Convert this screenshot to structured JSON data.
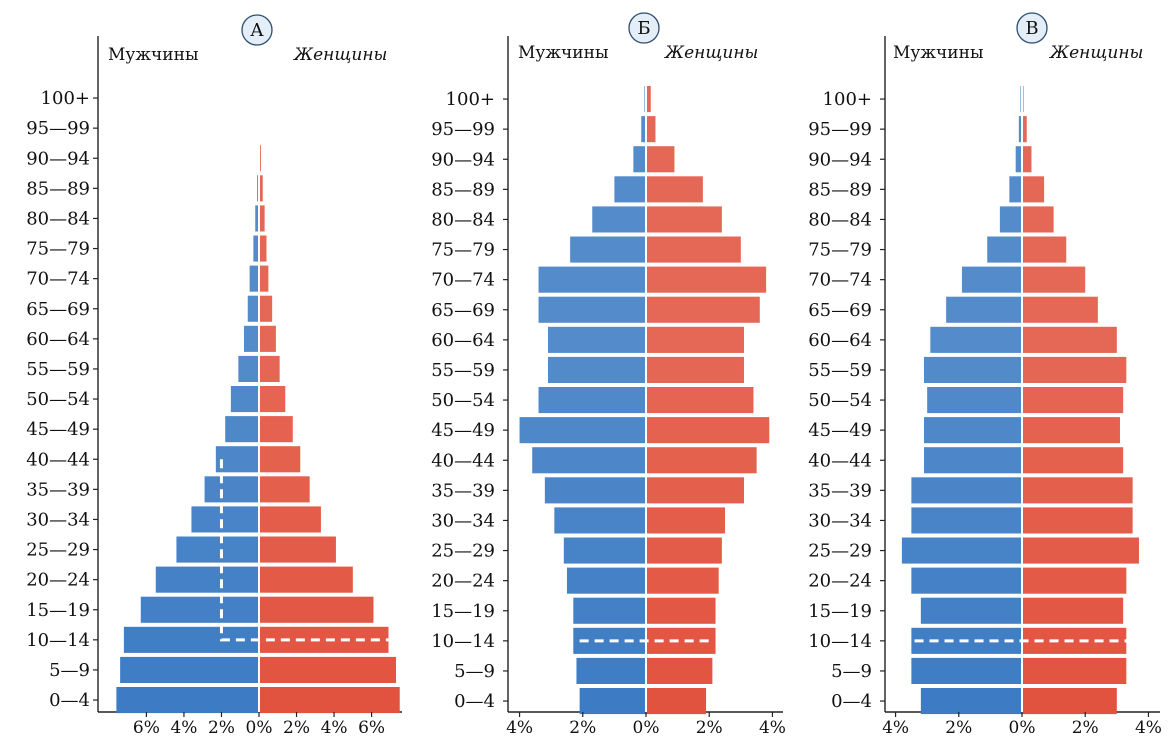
{
  "chart_data": [
    {
      "type": "bar",
      "panel_letter": "А",
      "left_label": "Мужчины",
      "right_label": "Женщины",
      "categories": [
        "0—4",
        "5—9",
        "10—14",
        "15—19",
        "20—24",
        "25—29",
        "30—34",
        "35—39",
        "40—44",
        "45—49",
        "50—54",
        "55—59",
        "60—64",
        "65—69",
        "70—74",
        "75—79",
        "80—84",
        "85—89",
        "90—94",
        "95—99",
        "100+"
      ],
      "series": [
        {
          "name": "Мужчины",
          "values": [
            7.6,
            7.4,
            7.2,
            6.3,
            5.5,
            4.4,
            3.6,
            2.9,
            2.3,
            1.8,
            1.5,
            1.1,
            0.8,
            0.6,
            0.5,
            0.3,
            0.2,
            0.1,
            0.05,
            0.0,
            0.0
          ]
        },
        {
          "name": "Женщины",
          "values": [
            7.5,
            7.3,
            6.9,
            6.1,
            5.0,
            4.1,
            3.3,
            2.7,
            2.2,
            1.8,
            1.4,
            1.1,
            0.9,
            0.7,
            0.5,
            0.4,
            0.3,
            0.2,
            0.1,
            0.05,
            0.0
          ]
        }
      ],
      "x_ticks": [
        "6%",
        "4%",
        "2%",
        "0%",
        "2%",
        "4%",
        "6%"
      ],
      "x_tick_values": [
        -6,
        -4,
        -2,
        0,
        2,
        4,
        6
      ],
      "xlim": [
        -8.1,
        8.1
      ],
      "colors": {
        "male": "#3d7cc4",
        "female": "#e2533f"
      },
      "dashed_outline": {
        "half_width": 2.0,
        "from_age_index": 2,
        "to_age_index": 8,
        "horizontal_to": 7.0
      }
    },
    {
      "type": "bar",
      "panel_letter": "Б",
      "left_label": "Мужчины",
      "right_label": "Женщины",
      "categories": [
        "0—4",
        "5—9",
        "10—14",
        "15—19",
        "20—24",
        "25—29",
        "30—34",
        "35—39",
        "40—44",
        "45—49",
        "50—54",
        "55—59",
        "60—64",
        "65—69",
        "70—74",
        "75—79",
        "80—84",
        "85—89",
        "90—94",
        "95—99",
        "100+"
      ],
      "series": [
        {
          "name": "Мужчины",
          "values": [
            2.1,
            2.2,
            2.3,
            2.3,
            2.5,
            2.6,
            2.9,
            3.2,
            3.6,
            4.0,
            3.4,
            3.1,
            3.1,
            3.4,
            3.4,
            2.4,
            1.7,
            1.0,
            0.4,
            0.15,
            0.05
          ]
        },
        {
          "name": "Женщины",
          "values": [
            1.9,
            2.1,
            2.2,
            2.2,
            2.3,
            2.4,
            2.5,
            3.1,
            3.5,
            3.9,
            3.4,
            3.1,
            3.1,
            3.6,
            3.8,
            3.0,
            2.4,
            1.8,
            0.9,
            0.3,
            0.15
          ]
        }
      ],
      "x_ticks": [
        "4%",
        "2%",
        "0%",
        "2%",
        "4%"
      ],
      "x_tick_values": [
        -4,
        -2,
        0,
        2,
        4
      ],
      "xlim": [
        -4.35,
        4.35
      ],
      "colors": {
        "male": "#3d7cc4",
        "female": "#e2533f"
      },
      "dashed_line": {
        "age_index": 2,
        "half_width": 2.1
      }
    },
    {
      "type": "bar",
      "panel_letter": "В",
      "left_label": "Мужчины",
      "right_label": "Женщины",
      "categories": [
        "0—4",
        "5—9",
        "10—14",
        "15—19",
        "20—24",
        "25—29",
        "30—34",
        "35—39",
        "40—44",
        "45—49",
        "50—54",
        "55—59",
        "60—64",
        "65—69",
        "70—74",
        "75—79",
        "80—84",
        "85—89",
        "90—94",
        "95—99",
        "100+"
      ],
      "series": [
        {
          "name": "Мужчины",
          "values": [
            3.2,
            3.5,
            3.5,
            3.2,
            3.5,
            3.8,
            3.5,
            3.5,
            3.1,
            3.1,
            3.0,
            3.1,
            2.9,
            2.4,
            1.9,
            1.1,
            0.7,
            0.4,
            0.2,
            0.1,
            0.05
          ]
        },
        {
          "name": "Женщины",
          "values": [
            3.0,
            3.3,
            3.3,
            3.2,
            3.3,
            3.7,
            3.5,
            3.5,
            3.2,
            3.1,
            3.2,
            3.3,
            3.0,
            2.4,
            2.0,
            1.4,
            1.0,
            0.7,
            0.3,
            0.15,
            0.05
          ]
        }
      ],
      "x_ticks": [
        "4%",
        "2%",
        "0%",
        "2%",
        "4%"
      ],
      "x_tick_values": [
        -4,
        -2,
        0,
        2,
        4
      ],
      "xlim": [
        -4.35,
        4.35
      ],
      "colors": {
        "male": "#3d7cc4",
        "female": "#e2533f"
      },
      "dashed_line": {
        "age_index": 2,
        "half_width": 3.4
      }
    }
  ]
}
